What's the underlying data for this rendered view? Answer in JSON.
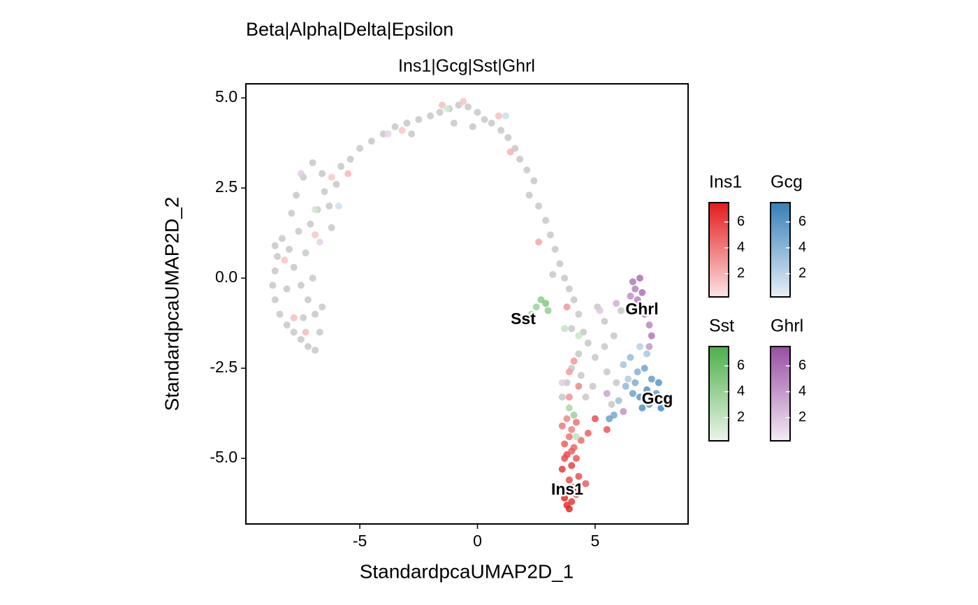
{
  "chart_data": {
    "type": "scatter",
    "title": "Beta|Alpha|Delta|Epsilon",
    "subtitle": "Ins1|Gcg|Sst|Ghrl",
    "x_label": "StandardpcaUMAP2D_1",
    "y_label": "StandardpcaUMAP2D_2",
    "xlim": [
      -9.84,
      8.95
    ],
    "ylim": [
      -6.82,
      5.39
    ],
    "xticks": [
      -5,
      0,
      5
    ],
    "yticks": [
      {
        "value": 5,
        "label": "5.0"
      },
      {
        "value": 2.5,
        "label": "2.5"
      },
      {
        "value": 0,
        "label": "0.0"
      },
      {
        "value": -2.5,
        "label": "-2.5"
      },
      {
        "value": -5,
        "label": "-5.0"
      }
    ],
    "annotations": [
      "Sst",
      "Ghrl",
      "Gcg",
      "Ins1"
    ],
    "series": [
      {
        "color": "#c8c8c8",
        "x": [
          -6.9,
          -7.2,
          -7.5,
          -7.8,
          -8.1,
          -8.4,
          -8.6,
          -8.7,
          -8.6,
          -8.5,
          -8.6,
          -8.3,
          -8.0,
          -7.8,
          -7.5,
          -7.2,
          -6.9,
          -6.7,
          -6.6,
          -7.0,
          -7.3,
          -7.6,
          -7.9,
          -7.7,
          -7.4,
          -7.0,
          -6.6,
          -6.5,
          -6.8,
          -7.1,
          -6.3,
          -6.0,
          -5.8,
          -5.4,
          -5.0,
          -4.5,
          -4.0,
          -3.5,
          -3.0,
          -2.5,
          -2.0,
          -1.6,
          -1.2,
          -0.8,
          -0.4,
          0.0,
          0.3,
          0.6,
          1.0,
          1.3,
          1.6,
          1.8,
          2.1,
          2.4,
          2.2,
          2.6,
          2.9,
          3.1,
          3.3,
          3.5,
          3.2,
          3.7,
          3.9,
          4.1,
          4.3,
          4.0,
          4.5,
          4.7,
          4.3,
          4.0,
          3.8,
          3.6,
          4.4,
          5.0,
          5.4,
          5.8,
          5.5,
          5.9,
          5.7,
          4.9,
          5.1,
          5.4,
          6.1,
          4.6,
          -0.2,
          -1.0,
          -2.8,
          -6.2,
          -8.1,
          -7.4
        ],
        "y": [
          -2.0,
          -1.9,
          -1.7,
          -1.5,
          -1.3,
          -1.0,
          -0.6,
          -0.2,
          0.2,
          0.6,
          0.9,
          1.1,
          0.8,
          0.3,
          -0.2,
          -0.6,
          -1.0,
          -1.5,
          -0.8,
          0.0,
          0.7,
          1.3,
          1.8,
          2.3,
          2.8,
          3.2,
          2.9,
          2.4,
          1.9,
          1.5,
          2.0,
          2.6,
          3.1,
          3.3,
          3.6,
          3.8,
          4.0,
          4.2,
          4.3,
          4.4,
          4.5,
          4.6,
          4.7,
          4.8,
          4.75,
          4.6,
          4.4,
          4.3,
          4.1,
          3.9,
          3.6,
          3.3,
          3.0,
          2.7,
          2.3,
          2.0,
          1.6,
          1.2,
          0.8,
          0.4,
          0.1,
          0.0,
          -0.3,
          -0.6,
          -1.0,
          -1.4,
          -1.5,
          -1.8,
          -2.1,
          -2.5,
          -2.9,
          -3.3,
          -2.7,
          -2.2,
          -1.9,
          -1.6,
          -2.6,
          -2.9,
          -3.5,
          -3.0,
          -0.8,
          -1.2,
          -0.9,
          -3.3,
          4.2,
          4.3,
          4.0,
          1.4,
          -0.3,
          -1.1
        ]
      },
      {
        "name": "Ins1",
        "color": "#e41a1c",
        "clim": [
          0.2,
          7.5
        ],
        "cticks": [
          2,
          4,
          6
        ],
        "x": [
          -7.8,
          -6.9,
          -5.5,
          -3.2,
          -1.5,
          -0.6,
          1.4,
          2.6,
          3.8,
          3.9,
          -7.3,
          -8.2,
          -6.2,
          0.9,
          3.8,
          4.0,
          4.2,
          3.7,
          4.1,
          3.9,
          4.3,
          3.6,
          4.0,
          4.2,
          3.8,
          4.1,
          3.7,
          4.4,
          3.9,
          4.0,
          4.2,
          3.8,
          4.1,
          3.9,
          3.7,
          4.0,
          5.0,
          4.7,
          5.5,
          3.9,
          4.1,
          4.3,
          3.6,
          4.6
        ],
        "y": [
          -1.1,
          1.2,
          2.9,
          4.1,
          4.8,
          4.9,
          3.5,
          1.0,
          -0.8,
          -2.6,
          -1.5,
          0.5,
          2.8,
          4.5,
          -6.3,
          -6.2,
          -6.0,
          -6.1,
          -5.8,
          -5.6,
          -5.5,
          -5.3,
          -5.2,
          -5.0,
          -4.9,
          -4.7,
          -4.6,
          -4.5,
          -4.4,
          -4.2,
          -4.0,
          -3.9,
          -5.9,
          -6.4,
          -5.0,
          -4.8,
          -3.9,
          -4.3,
          -4.2,
          -3.3,
          -2.3,
          -3.0,
          -4.1,
          -5.7
        ],
        "level": [
          1.5,
          1.3,
          1.8,
          1.2,
          1.6,
          1.4,
          2.0,
          2.5,
          3.0,
          2.8,
          1.7,
          1.4,
          1.3,
          1.5,
          6.8,
          6.5,
          6.2,
          6.9,
          6.0,
          5.8,
          5.5,
          6.3,
          6.1,
          5.2,
          5.9,
          4.8,
          5.0,
          4.5,
          4.2,
          3.8,
          4.4,
          3.5,
          6.6,
          7.0,
          5.7,
          4.9,
          5.5,
          5.0,
          5.3,
          3.2,
          3.0,
          3.6,
          4.1,
          5.1
        ]
      },
      {
        "name": "Gcg",
        "color": "#377eb8",
        "clim": [
          0.2,
          7.5
        ],
        "cticks": [
          2,
          4,
          6
        ],
        "x": [
          6.2,
          6.5,
          6.8,
          7.1,
          7.4,
          7.7,
          6.3,
          6.6,
          6.9,
          7.2,
          7.5,
          7.8,
          6.4,
          6.7,
          7.0,
          7.3,
          7.6,
          6.0,
          5.8,
          5.6,
          6.9,
          7.2,
          -5.9,
          1.2
        ],
        "y": [
          -2.4,
          -2.2,
          -2.6,
          -2.5,
          -2.8,
          -2.9,
          -3.0,
          -3.2,
          -3.3,
          -3.1,
          -3.4,
          -3.6,
          -2.8,
          -2.9,
          -3.6,
          -3.5,
          -3.2,
          -3.4,
          -3.8,
          -3.9,
          -1.9,
          -2.1,
          2.0,
          4.5
        ],
        "level": [
          3.0,
          3.5,
          4.2,
          5.0,
          5.5,
          6.0,
          3.8,
          5.2,
          5.8,
          6.3,
          6.5,
          6.8,
          2.5,
          4.5,
          6.2,
          6.0,
          5.6,
          3.2,
          4.8,
          5.3,
          2.2,
          2.8,
          1.2,
          1.3
        ]
      },
      {
        "name": "Sst",
        "color": "#4daf4a",
        "clim": [
          0.2,
          7.5
        ],
        "cticks": [
          2,
          4,
          6
        ],
        "x": [
          2.7,
          2.9,
          2.5,
          3.0,
          2.3,
          4.1,
          3.7,
          3.9,
          -6.9,
          -1.3,
          4.3,
          4.2
        ],
        "y": [
          -0.6,
          -0.7,
          -0.8,
          -0.9,
          -1.0,
          -3.8,
          -1.4,
          -3.6,
          1.9,
          4.7,
          -1.6,
          -4.4
        ],
        "level": [
          4.5,
          5.0,
          3.8,
          4.2,
          3.5,
          4.0,
          2.0,
          3.2,
          1.4,
          1.3,
          1.8,
          2.2
        ]
      },
      {
        "name": "Ghrl",
        "color": "#984ea3",
        "clim": [
          0.2,
          7.5
        ],
        "cticks": [
          2,
          4,
          6
        ],
        "x": [
          6.6,
          6.9,
          6.7,
          7.0,
          6.5,
          7.1,
          7.3,
          7.4,
          7.3,
          5.9,
          6.2,
          5.5,
          6.8,
          -7.5,
          -6.7,
          -3.8,
          3.6,
          5.2
        ],
        "y": [
          -0.1,
          0.0,
          -0.3,
          -0.4,
          -0.5,
          -1.0,
          -1.3,
          -1.6,
          -1.9,
          -0.7,
          -3.7,
          -3.2,
          -0.6,
          2.9,
          1.0,
          4.0,
          -2.9,
          -0.9
        ],
        "level": [
          5.5,
          6.0,
          5.0,
          5.8,
          4.5,
          5.2,
          4.8,
          5.5,
          4.0,
          3.0,
          4.2,
          3.5,
          5.0,
          1.5,
          1.3,
          1.2,
          1.6,
          1.8
        ]
      }
    ]
  }
}
